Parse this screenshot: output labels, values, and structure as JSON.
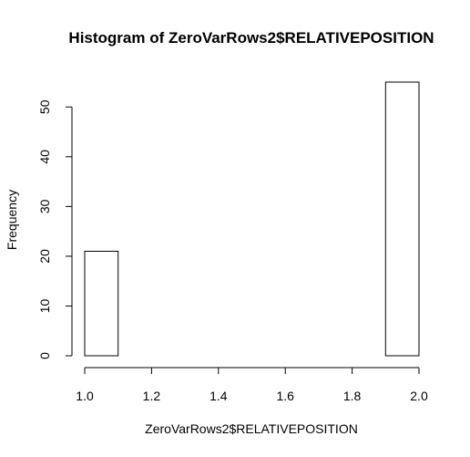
{
  "chart_data": {
    "type": "bar",
    "title": "Histogram of ZeroVarRows2$RELATIVEPOSITION",
    "xlabel": "ZeroVarRows2$RELATIVEPOSITION",
    "ylabel": "Frequency",
    "bins": [
      {
        "start": 1.0,
        "end": 1.1,
        "count": 21
      },
      {
        "start": 1.1,
        "end": 1.2,
        "count": 0
      },
      {
        "start": 1.2,
        "end": 1.3,
        "count": 0
      },
      {
        "start": 1.3,
        "end": 1.4,
        "count": 0
      },
      {
        "start": 1.4,
        "end": 1.5,
        "count": 0
      },
      {
        "start": 1.5,
        "end": 1.6,
        "count": 0
      },
      {
        "start": 1.6,
        "end": 1.7,
        "count": 0
      },
      {
        "start": 1.7,
        "end": 1.8,
        "count": 0
      },
      {
        "start": 1.8,
        "end": 1.9,
        "count": 0
      },
      {
        "start": 1.9,
        "end": 2.0,
        "count": 55
      }
    ],
    "xlim": [
      1.0,
      2.0
    ],
    "ylim": [
      0,
      55
    ],
    "xticks": [
      "1.0",
      "1.2",
      "1.4",
      "1.6",
      "1.8",
      "2.0"
    ],
    "yticks": [
      "0",
      "10",
      "20",
      "30",
      "40",
      "50"
    ],
    "bar_fill": "#ffffff",
    "bar_stroke": "#000000",
    "grid": false,
    "legend": "none"
  }
}
